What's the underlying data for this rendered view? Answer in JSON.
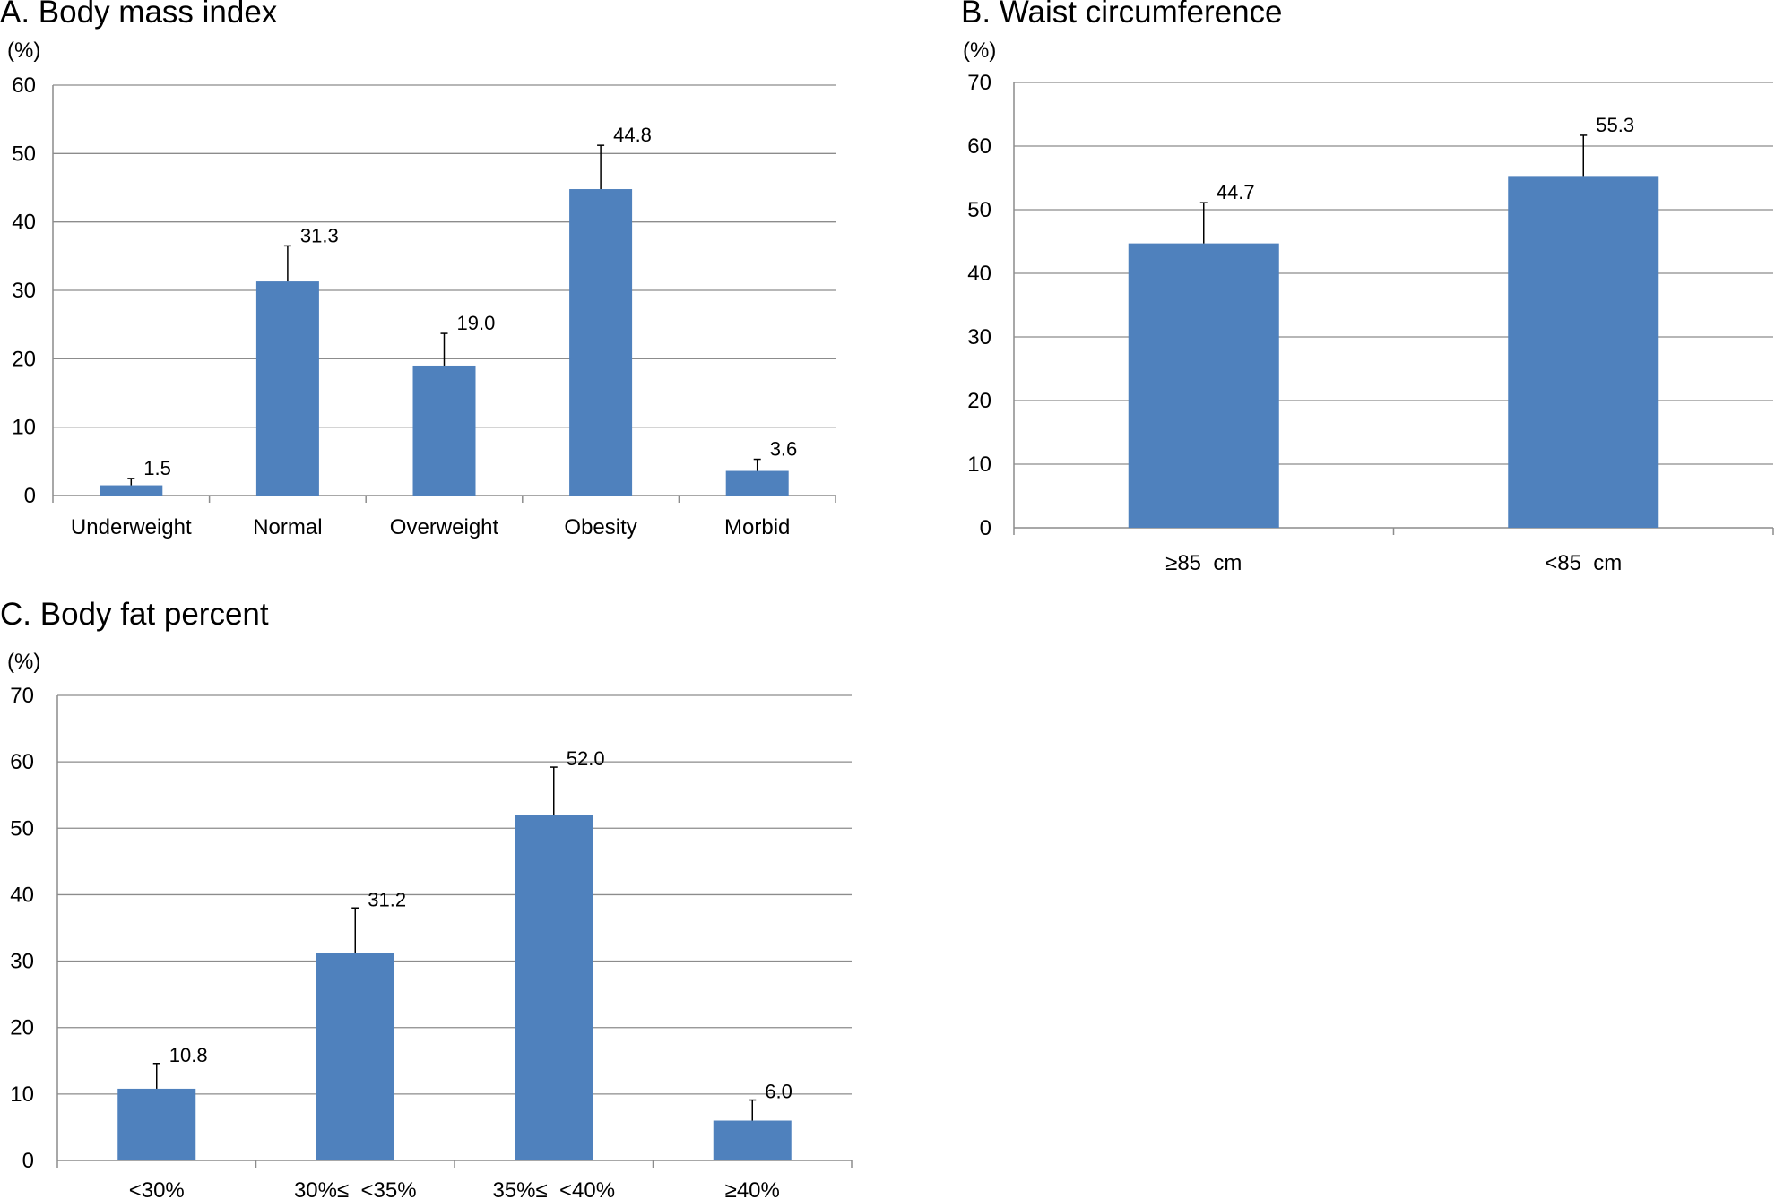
{
  "chart_data": [
    {
      "type": "bar",
      "title": "A. Body mass index",
      "ylabel": "(%)",
      "xlabel": "",
      "ylim": [
        0,
        60
      ],
      "yticks": [
        0,
        10,
        20,
        30,
        40,
        50,
        60
      ],
      "grid": true,
      "categories": [
        "Underweight",
        "Normal",
        "Overweight",
        "Obesity",
        "Morbid"
      ],
      "values": [
        1.5,
        31.3,
        19.0,
        44.8,
        3.6
      ],
      "value_labels": [
        "1.5",
        "31.3",
        "19.0",
        "44.8",
        "3.6"
      ],
      "error_upper": [
        2.5,
        36.5,
        23.7,
        51.2,
        5.3
      ]
    },
    {
      "type": "bar",
      "title": "B. Waist circumference",
      "ylabel": "(%)",
      "xlabel": "",
      "ylim": [
        0,
        70
      ],
      "yticks": [
        0,
        10,
        20,
        30,
        40,
        50,
        60,
        70
      ],
      "grid": true,
      "categories": [
        "≥85  cm",
        "<85  cm"
      ],
      "values": [
        44.7,
        55.3
      ],
      "value_labels": [
        "44.7",
        "55.3"
      ],
      "error_upper": [
        51.1,
        61.7
      ]
    },
    {
      "type": "bar",
      "title": "C. Body fat percent",
      "ylabel": "(%)",
      "xlabel": "",
      "ylim": [
        0,
        70
      ],
      "yticks": [
        0,
        10,
        20,
        30,
        40,
        50,
        60,
        70
      ],
      "grid": true,
      "categories": [
        "<30%",
        "30%≤  <35%",
        "35%≤  <40%",
        "≥40%"
      ],
      "values": [
        10.8,
        31.2,
        52.0,
        6.0
      ],
      "value_labels": [
        "10.8",
        "31.2",
        "52.0",
        "6.0"
      ],
      "error_upper": [
        14.6,
        38.0,
        59.2,
        9.1
      ]
    }
  ]
}
